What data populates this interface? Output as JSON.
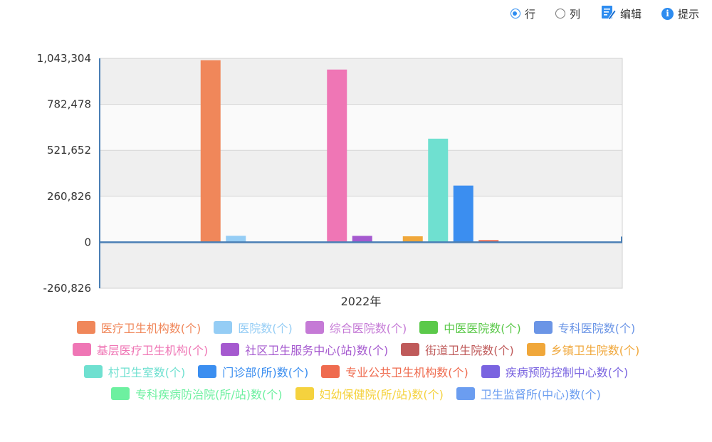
{
  "toolbar": {
    "row_label": "行",
    "col_label": "列",
    "edit_label": "编辑",
    "tip_label": "提示",
    "tip_glyph": "i"
  },
  "chart_data": {
    "type": "bar",
    "categories": [
      "2022年"
    ],
    "ylim": [
      -260826,
      1043304
    ],
    "yticks": [
      -260826,
      0,
      260826,
      521652,
      782478,
      1043304
    ],
    "ytick_labels": [
      "-260,826",
      "0",
      "260,826",
      "521,652",
      "782,478",
      "1,043,304"
    ],
    "grid": true,
    "legend_position": "bottom",
    "series": [
      {
        "name": "医疗卫生机构数(个)",
        "values": [
          1032918
        ],
        "color": "#f0875a"
      },
      {
        "name": "医院数(个)",
        "values": [
          36976
        ],
        "color": "#95cdf5"
      },
      {
        "name": "综合医院数(个)",
        "values": [
          0
        ],
        "color": "#c57ad6"
      },
      {
        "name": "中医医院数(个)",
        "values": [
          0
        ],
        "color": "#5bc94a"
      },
      {
        "name": "专科医院数(个)",
        "values": [
          0
        ],
        "color": "#6b95e6"
      },
      {
        "name": "基层医疗卫生机构(个)",
        "values": [
          979768
        ],
        "color": "#ef76b5"
      },
      {
        "name": "社区卫生服务中心(站)数(个)",
        "values": [
          36448
        ],
        "color": "#a559cf"
      },
      {
        "name": "街道卫生院数(个)",
        "values": [
          0
        ],
        "color": "#bf5a5a"
      },
      {
        "name": "乡镇卫生院数(个)",
        "values": [
          33917
        ],
        "color": "#f0a73a"
      },
      {
        "name": "村卫生室数(个)",
        "values": [
          587749
        ],
        "color": "#6fe0d0"
      },
      {
        "name": "门诊部(所)数(个)",
        "values": [
          321775
        ],
        "color": "#3b8ef0"
      },
      {
        "name": "专业公共卫生机构数(个)",
        "values": [
          12436
        ],
        "color": "#ef6b4f"
      },
      {
        "name": "疾病预防控制中心数(个)",
        "values": [
          3386
        ],
        "color": "#7a64e0"
      },
      {
        "name": "专科疾病防治院(所/站)数(个)",
        "values": [
          0
        ],
        "color": "#6df0a0"
      },
      {
        "name": "妇幼保健院(所/站)数(个)",
        "values": [
          0
        ],
        "color": "#f5d23e"
      },
      {
        "name": "卫生监督所(中心)数(个)",
        "values": [
          0
        ],
        "color": "#6b9df0"
      }
    ]
  }
}
